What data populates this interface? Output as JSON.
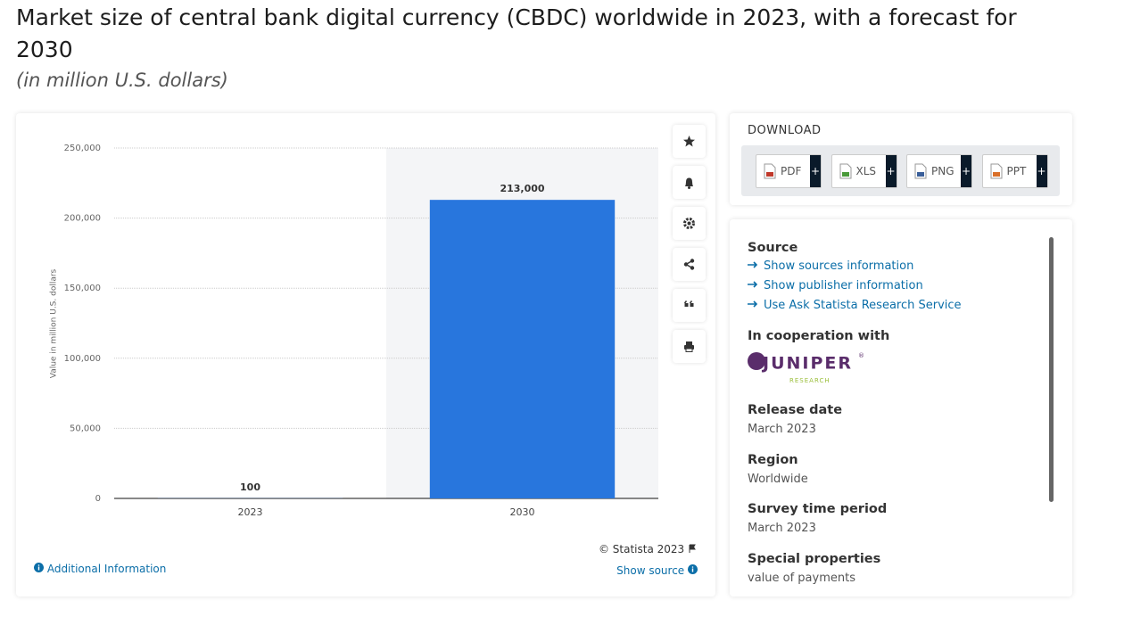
{
  "header": {
    "title": "Market size of central bank digital currency (CBDC) worldwide in 2023, with a forecast for 2030",
    "subtitle": "(in million U.S. dollars)"
  },
  "chart_data": {
    "type": "bar",
    "categories": [
      "2023",
      "2030"
    ],
    "values": [
      100,
      213000
    ],
    "value_labels": [
      "100",
      "213,000"
    ],
    "color": "#2876dd",
    "ylabel": "Value in million U.S. dollars",
    "ylim": [
      0,
      250000
    ],
    "yticks": [
      0,
      {
        "value": 50000,
        "label": "50,000"
      },
      {
        "value": 100000,
        "label": "100,000"
      },
      {
        "value": 150000,
        "label": "150,000"
      },
      {
        "value": 200000,
        "label": "200,000"
      },
      {
        "value": 250000,
        "label": "250,000"
      }
    ],
    "grid": true
  },
  "chart_footer": {
    "copyright": "© Statista 2023",
    "show_source": "Show source",
    "additional_info": "Additional Information"
  },
  "download": {
    "heading": "DOWNLOAD",
    "buttons": [
      "PDF",
      "XLS",
      "PNG",
      "PPT"
    ],
    "plus": "+"
  },
  "details": {
    "source_heading": "Source",
    "links": [
      "Show sources information",
      "Show publisher information",
      "Use Ask Statista Research Service"
    ],
    "cooperation_heading": "In cooperation with",
    "partner_logo": "JUNIPER",
    "partner_mark": "®",
    "partner_sub": "RESEARCH",
    "fields": [
      {
        "label": "Release date",
        "value": "March 2023"
      },
      {
        "label": "Region",
        "value": "Worldwide"
      },
      {
        "label": "Survey time period",
        "value": "March 2023"
      },
      {
        "label": "Special properties",
        "value": "value of payments"
      }
    ]
  }
}
